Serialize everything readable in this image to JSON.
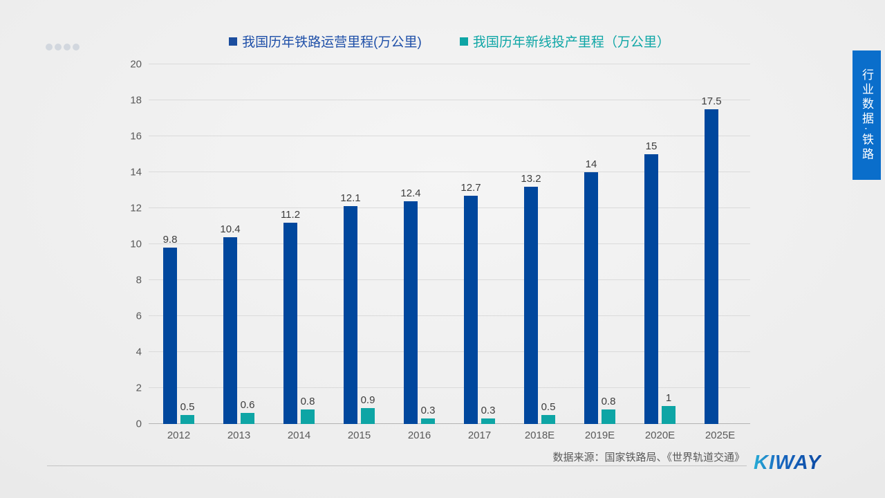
{
  "legend": [
    {
      "label": "我国历年铁路运营里程(万公里)",
      "text_color": "#1e4fa8",
      "swatch": "#1b4d9e"
    },
    {
      "label": "我国历年新线投产里程（万公里）",
      "text_color": "#0fa6a6",
      "swatch": "#0ea5a5"
    }
  ],
  "side_banner": {
    "text": "行业数据·铁路",
    "bg": "#0a6ecb"
  },
  "footer": {
    "source": "数据来源：国家铁路局、《世界轨道交通》",
    "logo": "KIWAY"
  },
  "chart_data": {
    "type": "bar",
    "title": "",
    "xlabel": "",
    "ylabel": "",
    "categories": [
      "2012",
      "2013",
      "2014",
      "2015",
      "2016",
      "2017",
      "2018E",
      "2019E",
      "2020E",
      "2025E"
    ],
    "series": [
      {
        "name": "我国历年铁路运营里程(万公里)",
        "color": "#00479d",
        "values": [
          9.8,
          10.4,
          11.2,
          12.1,
          12.4,
          12.7,
          13.2,
          14,
          15,
          17.5
        ]
      },
      {
        "name": "我国历年新线投产里程（万公里）",
        "color": "#0ea5a5",
        "values": [
          0.5,
          0.6,
          0.8,
          0.9,
          0.3,
          0.3,
          0.5,
          0.8,
          1,
          null
        ]
      }
    ],
    "ylim": [
      0,
      20
    ],
    "ytick_step": 2,
    "grid": true,
    "legend_position": "top"
  }
}
